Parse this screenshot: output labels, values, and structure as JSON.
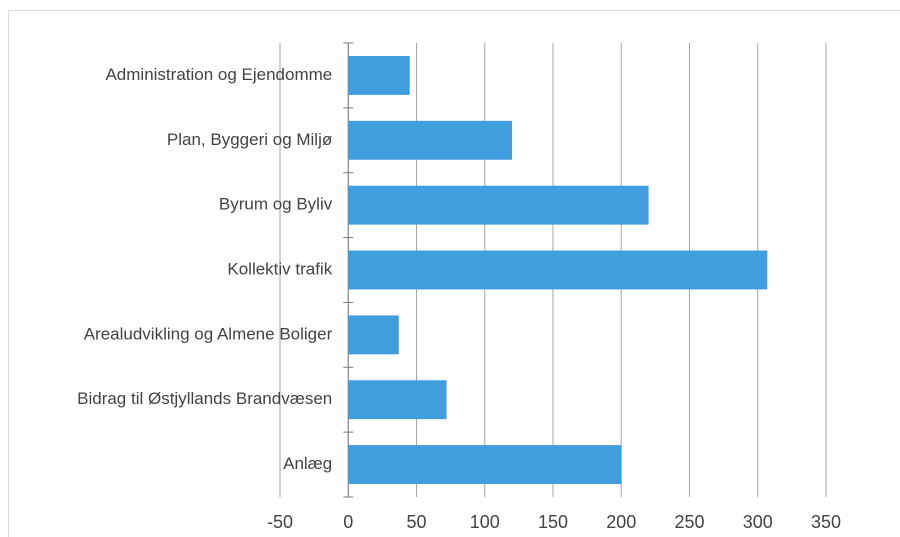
{
  "chart_data": {
    "type": "bar",
    "orientation": "horizontal",
    "categories": [
      "Administration og Ejendomme",
      "Plan, Byggeri og Miljø",
      "Byrum og Byliv",
      "Kollektiv trafik",
      "Arealudvikling og Almene Boliger",
      "Bidrag til Østjyllands Brandvæsen",
      "Anlæg"
    ],
    "values": [
      45,
      120,
      220,
      307,
      37,
      72,
      200
    ],
    "color": "#419ede",
    "xlim": [
      -50,
      350
    ],
    "xticks": [
      -50,
      0,
      50,
      100,
      150,
      200,
      250,
      300,
      350
    ],
    "grid": true
  }
}
